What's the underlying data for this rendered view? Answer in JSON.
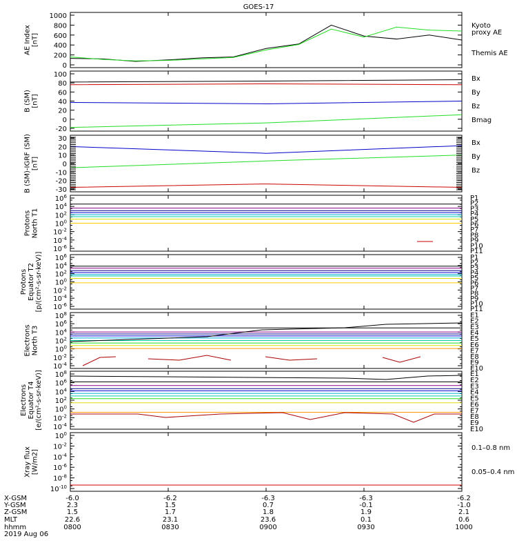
{
  "title": "GOES-17",
  "colors": {
    "black": "#000000",
    "green": "#22dd22",
    "blue": "#0000cc",
    "red": "#cc0000",
    "darkred": "#aa0000",
    "purple": "#880088",
    "navy": "#000088",
    "cyan": "#00aadd",
    "teal": "#00ccaa",
    "yellow": "#dddd00",
    "orange": "#ff9900",
    "gold": "#ffcc00"
  },
  "panels": [
    {
      "id": "ae",
      "ylabel": [
        "AE Index",
        "[nT]"
      ],
      "yticks": [
        "1000",
        "800",
        "600",
        "400",
        "200",
        "0"
      ],
      "legend": [
        {
          "text": "Kyoto",
          "color": "#22dd22"
        },
        {
          "text": "proxy AE",
          "color": "#22dd22"
        },
        {
          "text": "Themis AE",
          "color": "#000000"
        }
      ]
    },
    {
      "id": "bsm",
      "ylabel": [
        "B (SM)",
        "[nT]"
      ],
      "yticks": [
        "100",
        "80",
        "60",
        "40",
        "20",
        "0",
        "-20"
      ],
      "legend": [
        {
          "text": "Bx",
          "color": "#0000cc"
        },
        {
          "text": "By",
          "color": "#22dd22"
        },
        {
          "text": "Bz",
          "color": "#cc0000"
        },
        {
          "text": "Bmag",
          "color": "#000000"
        }
      ]
    },
    {
      "id": "bigrf",
      "ylabel": [
        "B (SM)-IGRF (SM)",
        "[nT]"
      ],
      "yticks": [
        "30",
        "20",
        "10",
        "0",
        "-10",
        "-20",
        "-30"
      ],
      "legend": [
        {
          "text": "Bx",
          "color": "#0000cc"
        },
        {
          "text": "By",
          "color": "#22dd22"
        },
        {
          "text": "Bz",
          "color": "#cc0000"
        }
      ]
    },
    {
      "id": "pt1",
      "ylabel": [
        "Protons",
        "North T1"
      ],
      "yticks": [
        "10^6",
        "10^4",
        "10^2",
        "10^0",
        "10^-2",
        "10^-4",
        "10^-6"
      ],
      "legend": [
        "P1",
        "P2",
        "P3",
        "P4",
        "P5",
        "P6",
        "P7",
        "P8",
        "P9",
        "P10",
        "P11"
      ]
    },
    {
      "id": "pt2",
      "ylabel": [
        "Protons",
        "Equator T2",
        "[p/(cm²-s-sr-keV)]"
      ],
      "yticks": [
        "10^6",
        "10^4",
        "10^2",
        "10^0",
        "10^-2",
        "10^-4",
        "10^-6"
      ],
      "legend": [
        "P1",
        "P2",
        "P3",
        "P4",
        "P5",
        "P6",
        "P7",
        "P8",
        "P9",
        "P10",
        "P11"
      ]
    },
    {
      "id": "et3",
      "ylabel": [
        "Electrons",
        "North T3"
      ],
      "yticks": [
        "10^8",
        "10^6",
        "10^4",
        "10^2",
        "10^0",
        "10^-2",
        "10^-4"
      ],
      "legend": [
        "E1",
        "E2",
        "E3",
        "E4",
        "E5",
        "E6",
        "E7",
        "E8",
        "E9",
        "E10"
      ]
    },
    {
      "id": "et4",
      "ylabel": [
        "Electrons",
        "Equator T4",
        "[e/(cm²-s-sr-keV)]"
      ],
      "yticks": [
        "10^8",
        "10^6",
        "10^4",
        "10^2",
        "10^0",
        "10^-2",
        "10^-4"
      ],
      "legend": [
        "E1",
        "E2",
        "E3",
        "E4",
        "E5",
        "E6",
        "E7",
        "E8",
        "E9",
        "E10"
      ]
    },
    {
      "id": "xray",
      "ylabel": [
        "Xray flux",
        "[W/m2]"
      ],
      "yticks": [
        "10^0",
        "10^-2",
        "10^-4",
        "10^-6",
        "10^-8",
        "10^-10"
      ],
      "legend": [
        {
          "text": "0.1–0.8 nm",
          "color": "#cc0000"
        },
        {
          "text": "0.05–0.4 nm",
          "color": "#0000cc"
        }
      ]
    }
  ],
  "orbit_table": {
    "row_labels": [
      "X-GSM",
      "Y-GSM",
      "Z-GSM",
      "MLT",
      "hhmm",
      "2019 Aug 06"
    ],
    "columns": [
      [
        "-6.0",
        "2.3",
        "1.5",
        "22.6",
        "0800"
      ],
      [
        "-6.2",
        "1.5",
        "1.7",
        "23.1",
        "0830"
      ],
      [
        "-6.3",
        "0.7",
        "1.8",
        "23.6",
        "0900"
      ],
      [
        "-6.3",
        "-0.1",
        "1.9",
        "0.1",
        "0930"
      ],
      [
        "-6.2",
        "-1.0",
        "2.1",
        "0.6",
        "1000"
      ]
    ]
  },
  "chart_data": [
    {
      "type": "line",
      "title": "GOES-17",
      "ylabel": "AE Index [nT]",
      "ylim": [
        0,
        1000
      ],
      "x": [
        0,
        10,
        20,
        30,
        40,
        50,
        60,
        70,
        80,
        90,
        100,
        110,
        120
      ],
      "series": [
        {
          "name": "Themis AE",
          "values": [
            130,
            120,
            70,
            100,
            140,
            160,
            330,
            420,
            800,
            580,
            520,
            600,
            500
          ]
        },
        {
          "name": "Kyoto proxy AE",
          "values": [
            160,
            110,
            80,
            90,
            120,
            150,
            300,
            410,
            720,
            560,
            760,
            700,
            680
          ]
        }
      ]
    },
    {
      "type": "line",
      "ylabel": "B (SM) [nT]",
      "ylim": [
        -20,
        100
      ],
      "x": [
        0,
        60,
        120
      ],
      "series": [
        {
          "name": "Bmag",
          "values": [
            82,
            84,
            87
          ]
        },
        {
          "name": "Bz",
          "values": [
            76,
            78,
            76
          ]
        },
        {
          "name": "Bx",
          "values": [
            37,
            34,
            40
          ]
        },
        {
          "name": "By",
          "values": [
            -18,
            -8,
            10
          ]
        }
      ]
    },
    {
      "type": "line",
      "ylabel": "B (SM)-IGRF (SM) [nT]",
      "ylim": [
        -30,
        30
      ],
      "x": [
        0,
        60,
        120
      ],
      "series": [
        {
          "name": "Bx",
          "values": [
            20,
            12,
            21
          ]
        },
        {
          "name": "By",
          "values": [
            -5,
            3,
            10
          ]
        },
        {
          "name": "Bz",
          "values": [
            -28,
            -24,
            -28
          ]
        }
      ]
    }
  ]
}
